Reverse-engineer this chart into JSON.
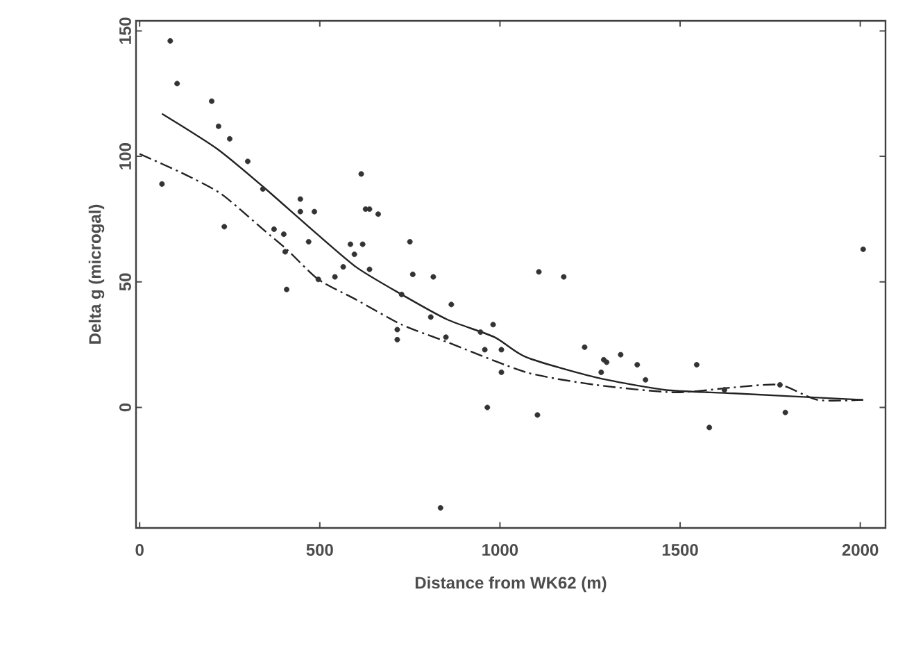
{
  "chart_data": {
    "type": "scatter",
    "xlabel": "Distance from WK62 (m)",
    "ylabel": "Delta g (microgal)",
    "xlim": [
      -10,
      2070
    ],
    "ylim": [
      -48,
      154
    ],
    "xticks": [
      0,
      500,
      1000,
      1500,
      2000
    ],
    "yticks": [
      0,
      50,
      100,
      150
    ],
    "grid": false,
    "marker": "circle",
    "series": [
      {
        "color": "#333333",
        "x": [
          85,
          104,
          200,
          219,
          250,
          300,
          62,
          342,
          446,
          446,
          485,
          235,
          373,
          400,
          469,
          404,
          496,
          542,
          565,
          408,
          615,
          627,
          638,
          662,
          585,
          619,
          750,
          596,
          638,
          758,
          815,
          727,
          865,
          808,
          715,
          715,
          850,
          946,
          981,
          958,
          835,
          1108,
          1177,
          1004,
          1004,
          1235,
          1288,
          1296,
          1335,
          1381,
          1281,
          1404,
          1546,
          1623,
          1777,
          1792,
          1581,
          965,
          1104,
          2008
        ],
        "values": [
          146,
          129,
          122,
          112,
          107,
          98,
          89,
          87,
          83,
          78,
          78,
          72,
          71,
          69,
          66,
          62,
          51,
          52,
          56,
          47,
          93,
          79,
          79,
          77,
          65,
          65,
          66,
          61,
          55,
          53,
          52,
          45,
          41,
          36,
          31,
          27,
          28,
          30,
          33,
          23,
          -40,
          54,
          52,
          23,
          14,
          24,
          19,
          18,
          21,
          17,
          14,
          11,
          17,
          7,
          9,
          -2,
          -8,
          0,
          -3,
          63
        ]
      },
      {
        "type": "line",
        "marker": "none",
        "line_style": "solid",
        "color": "#222222",
        "x": [
          62,
          215,
          342,
          469,
          600,
          727,
          854,
          985,
          1073,
          1265,
          1458,
          1650,
          2008
        ],
        "values": [
          117,
          103,
          88,
          72,
          56,
          45,
          35,
          28,
          20,
          12,
          7,
          5.6,
          3
        ]
      },
      {
        "type": "line",
        "marker": "none",
        "line_style": "dashed",
        "color": "#222222",
        "x": [
          0,
          123,
          227,
          342,
          408,
          496,
          600,
          727,
          854,
          1073,
          1265,
          1485,
          1650,
          1777,
          1881,
          2008
        ],
        "values": [
          101,
          93,
          85,
          71,
          63,
          51,
          43,
          33,
          26,
          14,
          9,
          6,
          8,
          9,
          3,
          3
        ]
      }
    ]
  }
}
